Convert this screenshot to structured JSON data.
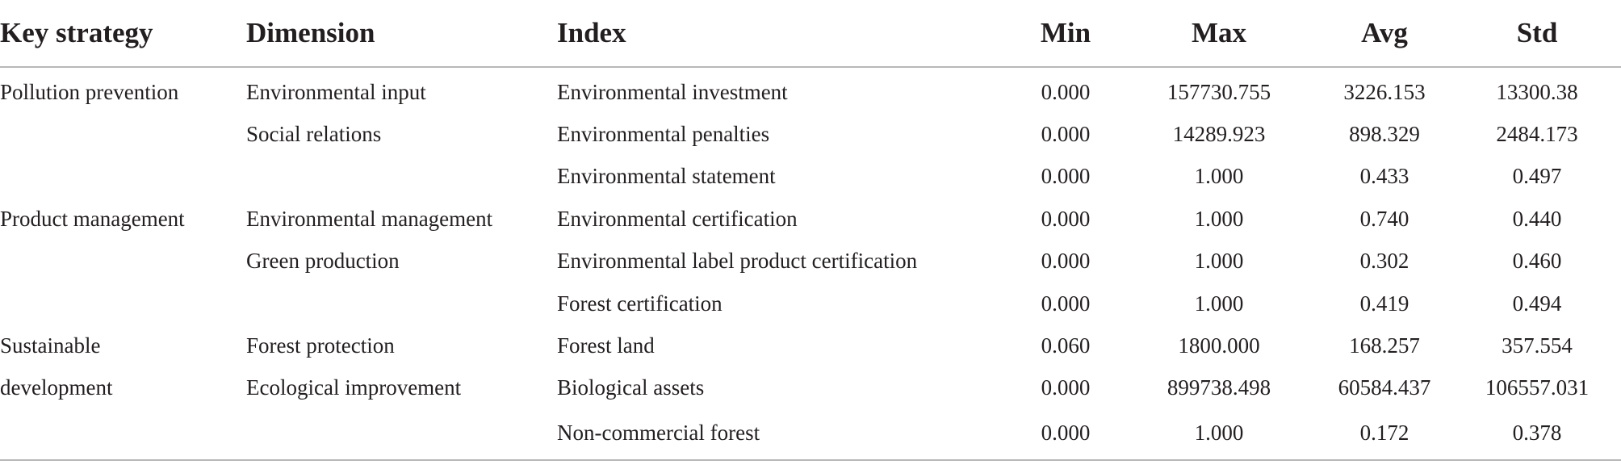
{
  "table": {
    "headers": {
      "key_strategy": "Key strategy",
      "dimension": "Dimension",
      "index": "Index",
      "min": "Min",
      "max": "Max",
      "avg": "Avg",
      "std": "Std"
    },
    "rows": [
      {
        "key_strategy": "Pollution prevention",
        "dimension": "Environmental input",
        "index": "Environmental investment",
        "min": "0.000",
        "max": "157730.755",
        "avg": "3226.153",
        "std": "13300.38"
      },
      {
        "key_strategy": "",
        "dimension": "Social relations",
        "index": "Environmental penalties",
        "min": "0.000",
        "max": "14289.923",
        "avg": "898.329",
        "std": "2484.173"
      },
      {
        "key_strategy": "",
        "dimension": "",
        "index": "Environmental statement",
        "min": "0.000",
        "max": "1.000",
        "avg": "0.433",
        "std": "0.497"
      },
      {
        "key_strategy": "Product management",
        "dimension": "Environmental management",
        "index": "Environmental certification",
        "min": "0.000",
        "max": "1.000",
        "avg": "0.740",
        "std": "0.440"
      },
      {
        "key_strategy": "",
        "dimension": "Green production",
        "index": "Environmental label product certification",
        "min": "0.000",
        "max": "1.000",
        "avg": "0.302",
        "std": "0.460"
      },
      {
        "key_strategy": "",
        "dimension": "",
        "index": "Forest certification",
        "min": "0.000",
        "max": "1.000",
        "avg": "0.419",
        "std": "0.494"
      },
      {
        "key_strategy": "Sustainable",
        "dimension": "Forest protection",
        "index": "Forest land",
        "min": "0.060",
        "max": "1800.000",
        "avg": "168.257",
        "std": "357.554"
      },
      {
        "key_strategy": "development",
        "dimension": "Ecological improvement",
        "index": "Biological assets",
        "min": "0.000",
        "max": "899738.498",
        "avg": "60584.437",
        "std": "106557.031"
      },
      {
        "key_strategy": "",
        "dimension": "",
        "index": "Non-commercial forest",
        "min": "0.000",
        "max": "1.000",
        "avg": "0.172",
        "std": "0.378"
      }
    ]
  }
}
